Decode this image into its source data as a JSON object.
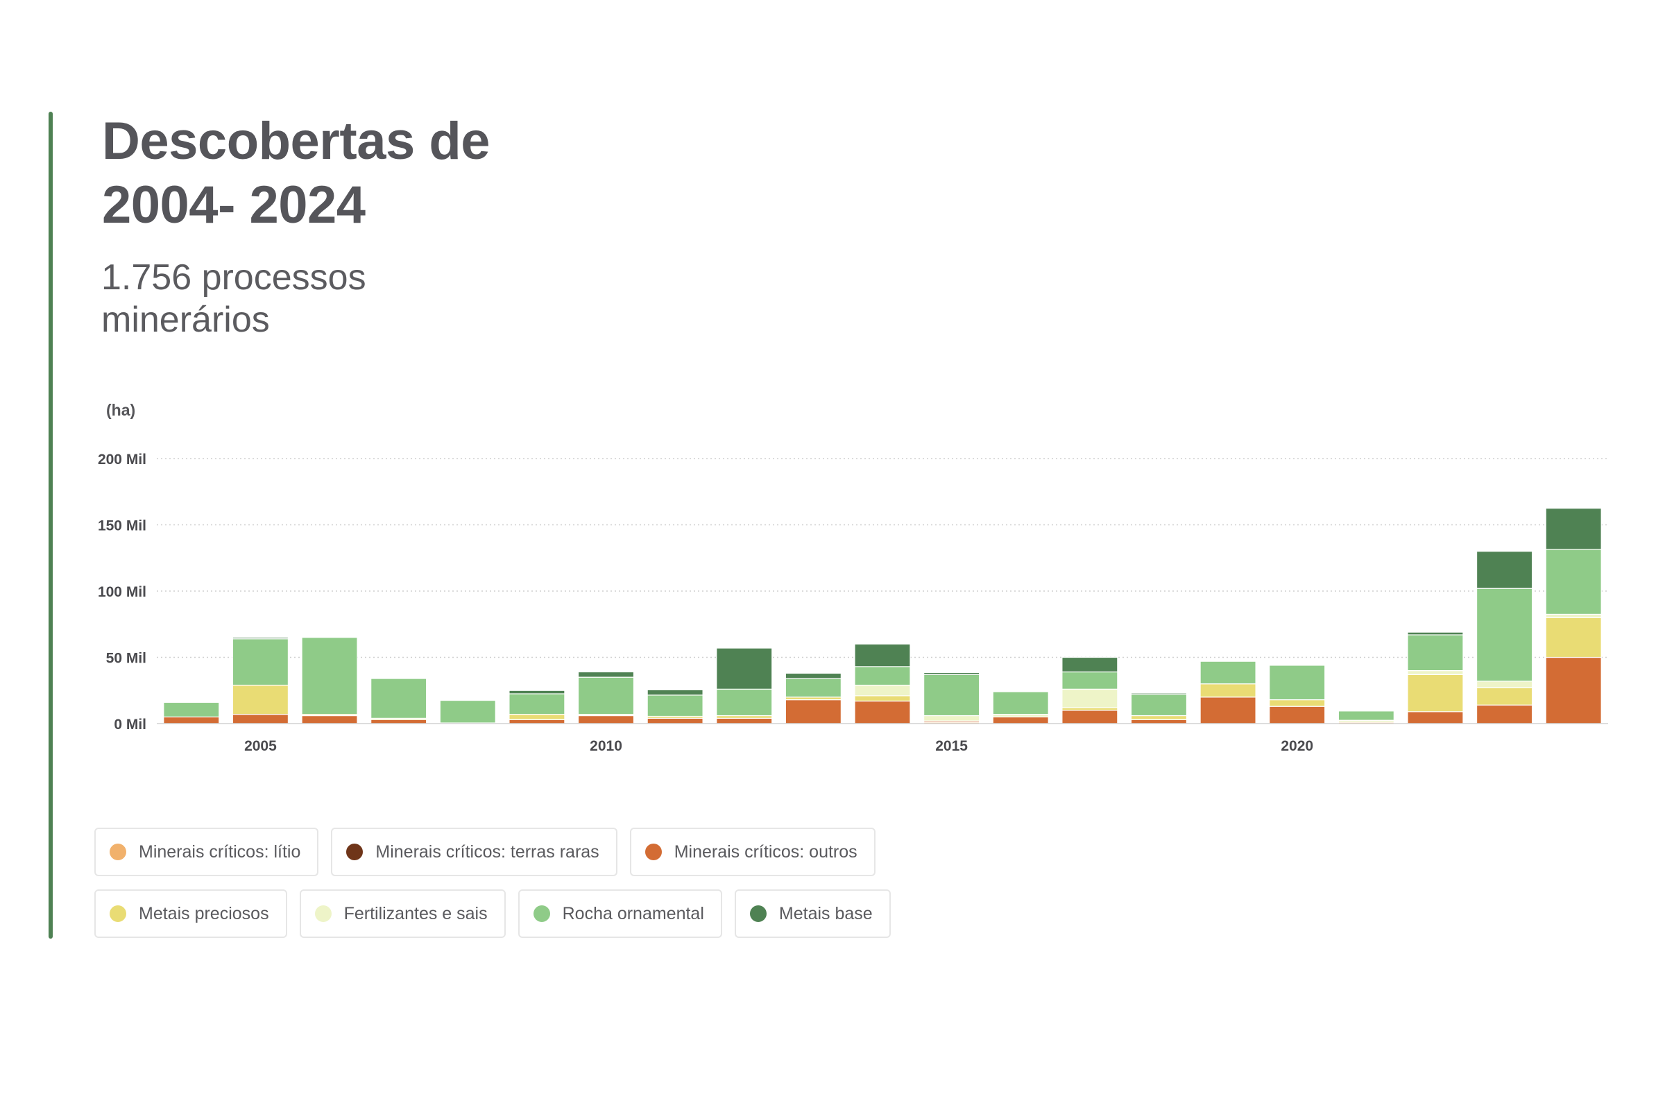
{
  "accent_color": "#4e8153",
  "chart_data": {
    "type": "bar",
    "stacked": true,
    "title": "Descobertas de\n2004- 2024",
    "subtitle": "1.756 processos\nminerários",
    "ylabel": "(ha)",
    "xlabel": "",
    "ylim": [
      0,
      200000
    ],
    "grid": "horizontal-dotted",
    "legend_position": "bottom-left",
    "y_ticks": [
      {
        "value": 0,
        "label": "0 Mil"
      },
      {
        "value": 50000,
        "label": "50 Mil"
      },
      {
        "value": 100000,
        "label": "100 Mil"
      },
      {
        "value": 150000,
        "label": "150 Mil"
      },
      {
        "value": 200000,
        "label": "200 Mil"
      }
    ],
    "x_tick_labels": [
      "2005",
      "2010",
      "2015",
      "2020"
    ],
    "categories": [
      2004,
      2005,
      2006,
      2007,
      2008,
      2009,
      2010,
      2011,
      2012,
      2013,
      2014,
      2015,
      2016,
      2017,
      2018,
      2019,
      2020,
      2021,
      2022,
      2023,
      2024
    ],
    "series": [
      {
        "name": "Minerais críticos: lítio",
        "color": "#f1b16c",
        "values": [
          0,
          0,
          0,
          0,
          0,
          0,
          0,
          0,
          0,
          0,
          0,
          1000,
          0,
          0,
          0,
          0,
          0,
          1000,
          0,
          0,
          0
        ]
      },
      {
        "name": "Minerais críticos: terras raras",
        "color": "#6f3519",
        "values": [
          0,
          0,
          0,
          0,
          0,
          0,
          0,
          0,
          0,
          0,
          0,
          0,
          0,
          0,
          0,
          0,
          0,
          0,
          0,
          0,
          0
        ]
      },
      {
        "name": "Minerais críticos: outros",
        "color": "#d36c34",
        "values": [
          5000,
          7000,
          6000,
          3000,
          500,
          3000,
          6000,
          4000,
          4000,
          18000,
          17000,
          1000,
          5000,
          10000,
          3000,
          20000,
          13000,
          0,
          9000,
          14000,
          50000
        ]
      },
      {
        "name": "Metais preciosos",
        "color": "#e9dc74",
        "values": [
          0,
          22000,
          1000,
          1000,
          0,
          4000,
          0,
          1500,
          2000,
          2000,
          4000,
          0,
          0,
          2000,
          3000,
          10000,
          5000,
          0,
          28000,
          13000,
          30000
        ]
      },
      {
        "name": "Fertilizantes e sais",
        "color": "#eef4c8",
        "values": [
          0,
          0,
          0,
          0,
          0,
          0,
          1000,
          0,
          0,
          0,
          8000,
          4000,
          2000,
          14000,
          0,
          0,
          0,
          1500,
          3000,
          5000,
          2500
        ]
      },
      {
        "name": "Rocha ornamental",
        "color": "#8fcb88",
        "values": [
          11000,
          35000,
          58000,
          30000,
          17000,
          15500,
          28000,
          16000,
          20000,
          14000,
          14000,
          31000,
          17000,
          13000,
          16000,
          17000,
          26000,
          7000,
          27000,
          70000,
          49000
        ]
      },
      {
        "name": "Metais base",
        "color": "#4f8253",
        "values": [
          0,
          1000,
          0,
          0,
          0,
          2500,
          4000,
          4000,
          31000,
          4000,
          17000,
          1500,
          0,
          11000,
          1000,
          0,
          0,
          0,
          2000,
          28000,
          31000
        ]
      }
    ]
  }
}
